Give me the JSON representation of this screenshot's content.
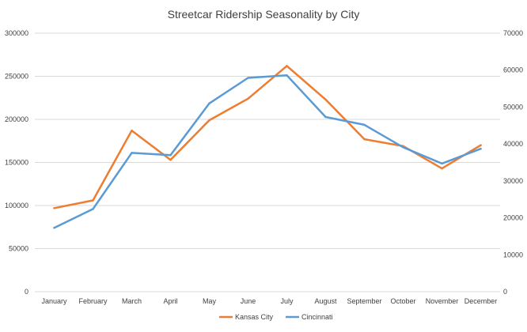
{
  "chart_data": {
    "type": "line",
    "title": "Streetcar Ridership Seasonality  by City",
    "categories": [
      "January",
      "February",
      "March",
      "April",
      "May",
      "June",
      "July",
      "August",
      "September",
      "October",
      "November",
      "December"
    ],
    "y_left": {
      "range": [
        0,
        300000
      ],
      "ticks": [
        "0",
        "50000",
        "100000",
        "150000",
        "200000",
        "250000",
        "300000"
      ]
    },
    "y_right": {
      "range": [
        0,
        70000
      ],
      "ticks": [
        "0",
        "10000",
        "20000",
        "30000",
        "40000",
        "50000",
        "60000",
        "70000"
      ]
    },
    "grid": true,
    "legend_position": "bottom",
    "series": [
      {
        "name": "Kansas City",
        "axis": "left",
        "color": "#ED7D31",
        "values": [
          97000,
          106000,
          187000,
          153000,
          199000,
          224000,
          262000,
          223000,
          177000,
          169000,
          143000,
          170000
        ]
      },
      {
        "name": "Cincinnati",
        "axis": "right",
        "color": "#5B9BD5",
        "values": [
          17300,
          22400,
          37600,
          37000,
          51000,
          57900,
          58600,
          47300,
          45200,
          39100,
          34700,
          38700
        ]
      }
    ]
  }
}
